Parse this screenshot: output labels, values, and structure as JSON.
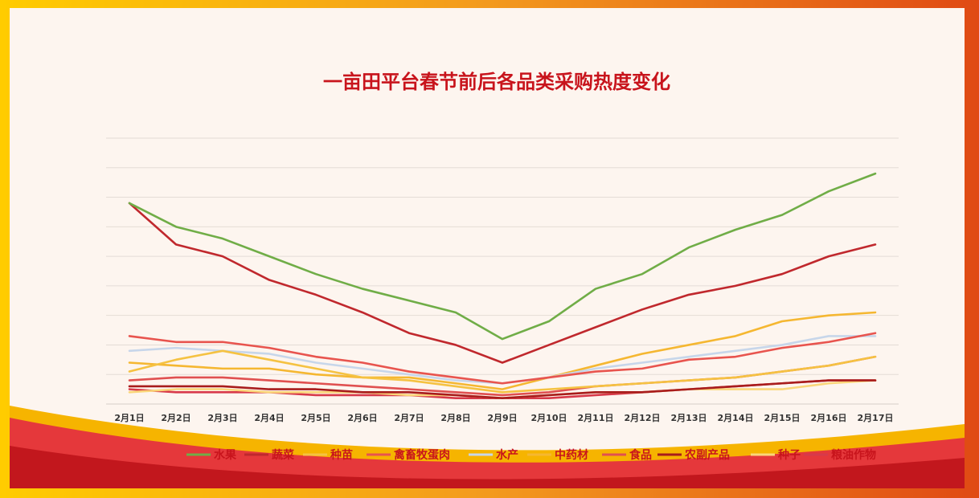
{
  "chart_data": {
    "type": "line",
    "title": "一亩田平台春节前后各品类采购热度变化",
    "xlabel": "",
    "ylabel": "",
    "ylim": [
      0,
      9
    ],
    "grid": true,
    "legend_position": "bottom",
    "categories": [
      "2月1日",
      "2月2日",
      "2月3日",
      "2月4日",
      "2月5日",
      "2月6日",
      "2月7日",
      "2月8日",
      "2月9日",
      "2月10日",
      "2月11日",
      "2月12日",
      "2月13日",
      "2月14日",
      "2月15日",
      "2月16日",
      "2月17日"
    ],
    "series": [
      {
        "name": "水果",
        "color": "#70ad47",
        "values": [
          6.8,
          6.0,
          5.6,
          5.0,
          4.4,
          3.9,
          3.5,
          3.1,
          2.2,
          2.8,
          3.9,
          4.4,
          5.3,
          5.9,
          6.4,
          7.2,
          7.8
        ]
      },
      {
        "name": "蔬菜",
        "color": "#c0282d",
        "values": [
          6.8,
          5.4,
          5.0,
          4.2,
          3.7,
          3.1,
          2.4,
          2.0,
          1.4,
          2.0,
          2.6,
          3.2,
          3.7,
          4.0,
          4.4,
          5.0,
          5.4
        ]
      },
      {
        "name": "种苗",
        "color": "#f5c242",
        "values": [
          1.1,
          1.5,
          1.8,
          1.5,
          1.2,
          0.9,
          0.8,
          0.6,
          0.4,
          0.5,
          0.6,
          0.7,
          0.8,
          0.9,
          1.1,
          1.3,
          1.6
        ]
      },
      {
        "name": "禽畜牧蛋肉",
        "color": "#e8544e",
        "values": [
          2.3,
          2.1,
          2.1,
          1.9,
          1.6,
          1.4,
          1.1,
          0.9,
          0.7,
          0.9,
          1.1,
          1.2,
          1.5,
          1.6,
          1.9,
          2.1,
          2.4
        ]
      },
      {
        "name": "水产",
        "color": "#c7d6ea",
        "values": [
          1.8,
          1.9,
          1.8,
          1.7,
          1.4,
          1.2,
          1.0,
          0.8,
          0.7,
          0.9,
          1.2,
          1.4,
          1.6,
          1.8,
          2.0,
          2.3,
          2.3
        ]
      },
      {
        "name": "中药材",
        "color": "#f5b731",
        "values": [
          1.4,
          1.3,
          1.2,
          1.2,
          1.0,
          0.9,
          0.9,
          0.7,
          0.5,
          0.9,
          1.3,
          1.7,
          2.0,
          2.3,
          2.8,
          3.0,
          3.1
        ]
      },
      {
        "name": "食品",
        "color": "#e05050",
        "values": [
          0.8,
          0.9,
          0.9,
          0.8,
          0.7,
          0.6,
          0.5,
          0.4,
          0.3,
          0.4,
          0.6,
          0.7,
          0.8,
          0.9,
          1.1,
          1.3,
          1.6
        ]
      },
      {
        "name": "农副产品",
        "color": "#a81c1c",
        "values": [
          0.6,
          0.6,
          0.6,
          0.5,
          0.5,
          0.4,
          0.4,
          0.3,
          0.2,
          0.3,
          0.4,
          0.4,
          0.5,
          0.6,
          0.7,
          0.8,
          0.8
        ]
      },
      {
        "name": "种子",
        "color": "#fad67a",
        "values": [
          0.4,
          0.5,
          0.5,
          0.4,
          0.4,
          0.4,
          0.3,
          0.3,
          0.2,
          0.3,
          0.4,
          0.4,
          0.5,
          0.5,
          0.5,
          0.7,
          0.8
        ]
      },
      {
        "name": "粮油作物",
        "color": "#d83a4a",
        "values": [
          0.5,
          0.4,
          0.4,
          0.4,
          0.3,
          0.3,
          0.3,
          0.2,
          0.2,
          0.2,
          0.3,
          0.4,
          0.5,
          0.6,
          0.7,
          0.8,
          0.8
        ]
      }
    ]
  }
}
